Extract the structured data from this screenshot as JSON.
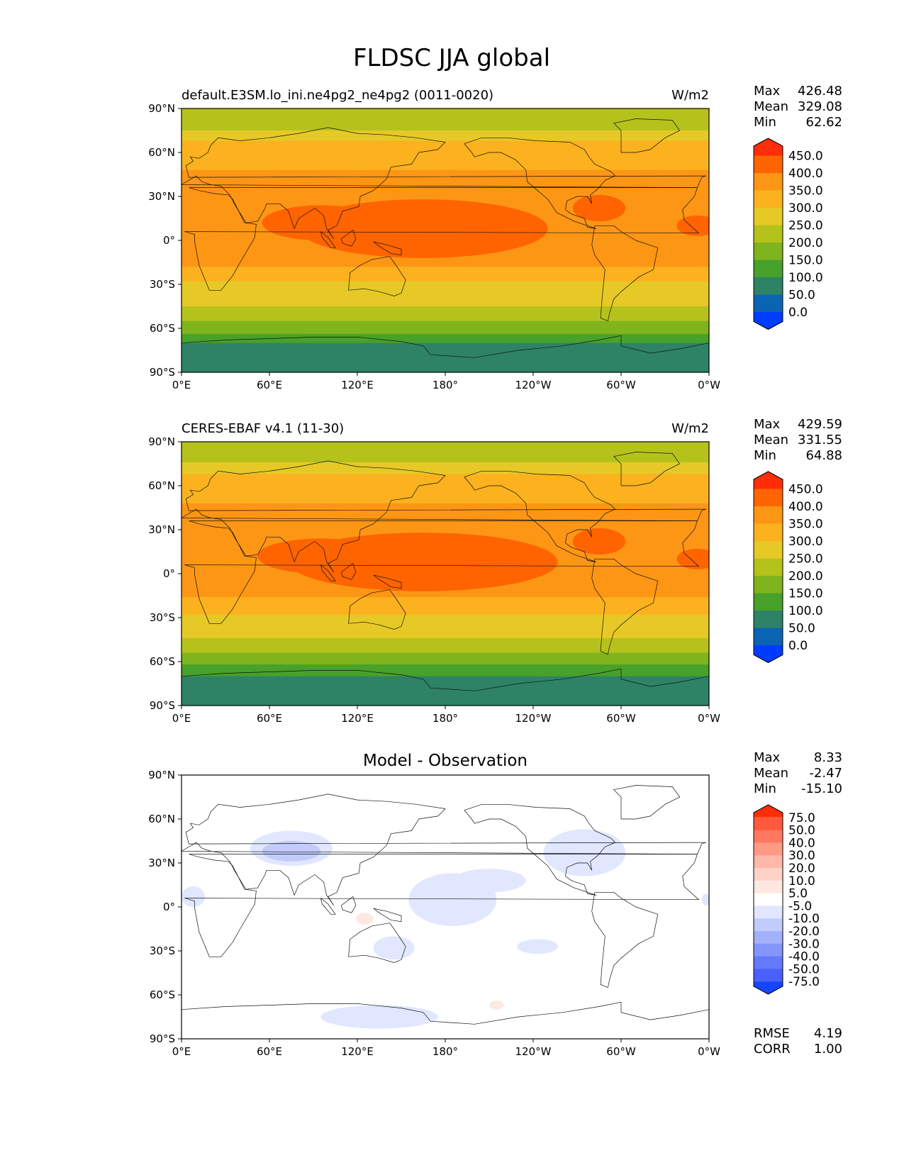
{
  "figure": {
    "title": "FLDSC JJA global"
  },
  "chart_data": [
    {
      "type": "heatmap",
      "title": "default.E3SM.lo_ini.ne4pg2_ne4pg2 (0011-0020)",
      "units": "W/m2",
      "stats": [
        {
          "label": "Max",
          "value": "426.48"
        },
        {
          "label": "Mean",
          "value": "329.08"
        },
        {
          "label": "Min",
          "value": "62.62"
        }
      ],
      "xticks": [
        "0°E",
        "60°E",
        "120°E",
        "180°",
        "120°W",
        "60°W",
        "0°W"
      ],
      "yticks": [
        "90°N",
        "60°N",
        "30°N",
        "0°",
        "30°S",
        "60°S",
        "90°S"
      ],
      "xlim": [
        0,
        360
      ],
      "ylim": [
        -90,
        90
      ],
      "colorbar": {
        "labels": [
          "450.0",
          "400.0",
          "350.0",
          "300.0",
          "250.0",
          "200.0",
          "150.0",
          "100.0",
          "50.0",
          "0.0"
        ],
        "colors": [
          "#ff2d0a",
          "#ff6400",
          "#fd9614",
          "#fbb21e",
          "#e6c926",
          "#b5c21c",
          "#80b41c",
          "#47a12a",
          "#2e8366",
          "#0a64b4",
          "#003cff"
        ],
        "extend": "both"
      },
      "bands": [
        {
          "lat": [
            90,
            75
          ],
          "color": "#b5c21c"
        },
        {
          "lat": [
            75,
            68
          ],
          "color": "#e6c926"
        },
        {
          "lat": [
            68,
            48
          ],
          "color": "#fbb21e"
        },
        {
          "lat": [
            48,
            -18
          ],
          "color": "#fd9614"
        },
        {
          "lat": [
            -18,
            -28
          ],
          "color": "#fbb21e"
        },
        {
          "lat": [
            -28,
            -45
          ],
          "color": "#e6c926"
        },
        {
          "lat": [
            -45,
            -55
          ],
          "color": "#b5c21c"
        },
        {
          "lat": [
            -55,
            -64
          ],
          "color": "#80b41c"
        },
        {
          "lat": [
            -64,
            -70
          ],
          "color": "#47a12a"
        },
        {
          "lat": [
            -70,
            -90
          ],
          "color": "#2e8366"
        }
      ],
      "warm_pool_scale": 1.0
    },
    {
      "type": "heatmap",
      "title": "CERES-EBAF v4.1 (11-30)",
      "units": "W/m2",
      "stats": [
        {
          "label": "Max",
          "value": "429.59"
        },
        {
          "label": "Mean",
          "value": "331.55"
        },
        {
          "label": "Min",
          "value": "64.88"
        }
      ],
      "xticks": [
        "0°E",
        "60°E",
        "120°E",
        "180°",
        "120°W",
        "60°W",
        "0°W"
      ],
      "yticks": [
        "90°N",
        "60°N",
        "30°N",
        "0°",
        "30°S",
        "60°S",
        "90°S"
      ],
      "xlim": [
        0,
        360
      ],
      "ylim": [
        -90,
        90
      ],
      "colorbar": {
        "labels": [
          "450.0",
          "400.0",
          "350.0",
          "300.0",
          "250.0",
          "200.0",
          "150.0",
          "100.0",
          "50.0",
          "0.0"
        ],
        "colors": [
          "#ff2d0a",
          "#ff6400",
          "#fd9614",
          "#fbb21e",
          "#e6c926",
          "#b5c21c",
          "#80b41c",
          "#47a12a",
          "#2e8366",
          "#0a64b4",
          "#003cff"
        ],
        "extend": "both"
      },
      "bands": [
        {
          "lat": [
            90,
            76
          ],
          "color": "#b5c21c"
        },
        {
          "lat": [
            76,
            68
          ],
          "color": "#e6c926"
        },
        {
          "lat": [
            68,
            48
          ],
          "color": "#fbb21e"
        },
        {
          "lat": [
            48,
            -16
          ],
          "color": "#fd9614"
        },
        {
          "lat": [
            -16,
            -28
          ],
          "color": "#fbb21e"
        },
        {
          "lat": [
            -28,
            -44
          ],
          "color": "#e6c926"
        },
        {
          "lat": [
            -44,
            -54
          ],
          "color": "#b5c21c"
        },
        {
          "lat": [
            -54,
            -62
          ],
          "color": "#80b41c"
        },
        {
          "lat": [
            -62,
            -70
          ],
          "color": "#47a12a"
        },
        {
          "lat": [
            -70,
            -90
          ],
          "color": "#2e8366"
        }
      ],
      "warm_pool_scale": 1.08
    },
    {
      "type": "heatmap",
      "title": "Model - Observation",
      "units": "",
      "stats": [
        {
          "label": "Max",
          "value": "8.33"
        },
        {
          "label": "Mean",
          "value": "-2.47"
        },
        {
          "label": "Min",
          "value": "-15.10"
        }
      ],
      "footer_stats": [
        {
          "label": "RMSE",
          "value": "4.19"
        },
        {
          "label": "CORR",
          "value": "1.00"
        }
      ],
      "xticks": [
        "0°E",
        "60°E",
        "120°E",
        "180°",
        "120°W",
        "60°W",
        "0°W"
      ],
      "yticks": [
        "90°N",
        "60°N",
        "30°N",
        "0°",
        "30°S",
        "60°S",
        "90°S"
      ],
      "xlim": [
        0,
        360
      ],
      "ylim": [
        -90,
        90
      ],
      "colorbar": {
        "labels": [
          "75.0",
          "50.0",
          "40.0",
          "30.0",
          "20.0",
          "10.0",
          "5.0",
          "-5.0",
          "-10.0",
          "-20.0",
          "-30.0",
          "-40.0",
          "-50.0",
          "-75.0"
        ],
        "colors": [
          "#ff2d0a",
          "#ff5a3c",
          "#ff7860",
          "#ff9a85",
          "#ffb7a8",
          "#ffd2c8",
          "#ffe8e2",
          "#ffffff",
          "#e0e7ff",
          "#c2ccfc",
          "#a3b1fb",
          "#8496fb",
          "#6479fc",
          "#4a60fd",
          "#1446ff"
        ],
        "extend": "both"
      }
    }
  ]
}
